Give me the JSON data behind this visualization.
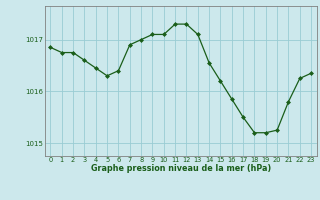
{
  "x": [
    0,
    1,
    2,
    3,
    4,
    5,
    6,
    7,
    8,
    9,
    10,
    11,
    12,
    13,
    14,
    15,
    16,
    17,
    18,
    19,
    20,
    21,
    22,
    23
  ],
  "y": [
    1016.85,
    1016.75,
    1016.75,
    1016.6,
    1016.45,
    1016.3,
    1016.4,
    1016.9,
    1017.0,
    1017.1,
    1017.1,
    1017.3,
    1017.3,
    1017.1,
    1016.55,
    1016.2,
    1015.85,
    1015.5,
    1015.2,
    1015.2,
    1015.25,
    1015.8,
    1016.25,
    1016.35
  ],
  "line_color": "#1a5e1a",
  "marker_color": "#1a5e1a",
  "bg_color": "#cce8ec",
  "grid_color": "#99ccd4",
  "axis_color": "#808080",
  "xlabel": "Graphe pression niveau de la mer (hPa)",
  "xlabel_color": "#1a5e1a",
  "tick_color": "#1a5e1a",
  "ylim": [
    1014.75,
    1017.65
  ],
  "yticks": [
    1015,
    1016,
    1017
  ],
  "xticks": [
    0,
    1,
    2,
    3,
    4,
    5,
    6,
    7,
    8,
    9,
    10,
    11,
    12,
    13,
    14,
    15,
    16,
    17,
    18,
    19,
    20,
    21,
    22,
    23
  ],
  "figsize": [
    3.2,
    2.0
  ],
  "dpi": 100
}
